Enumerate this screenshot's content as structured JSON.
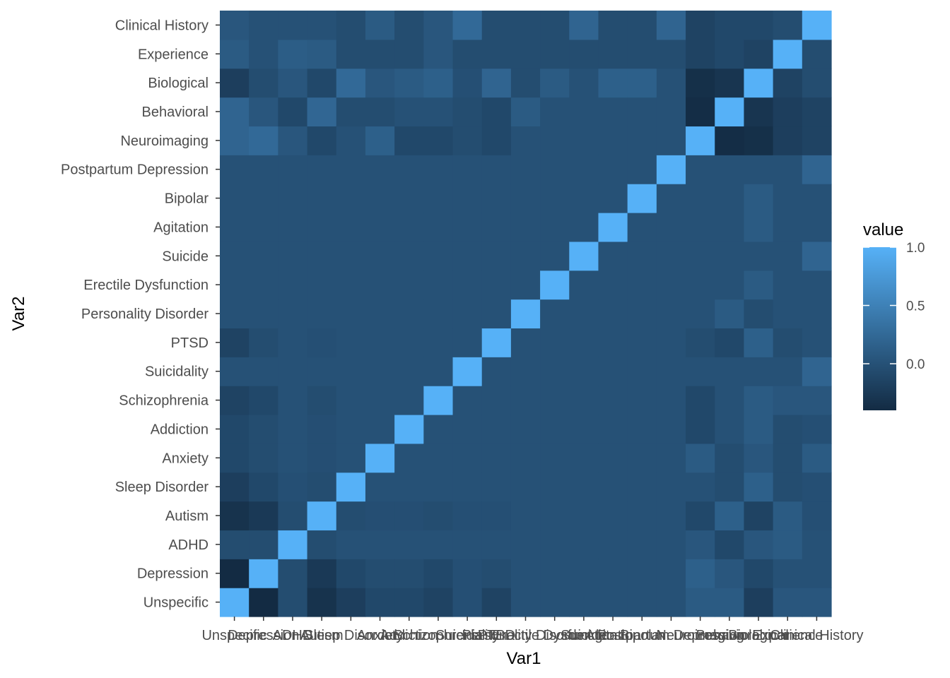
{
  "chart_data": {
    "type": "heatmap",
    "xlabel": "Var1",
    "ylabel": "Var2",
    "categories": [
      "Unspecific",
      "Depression",
      "ADHD",
      "Autism",
      "Sleep Disorder",
      "Anxiety",
      "Addiction",
      "Schizophrenia",
      "Suicidality",
      "PTSD",
      "Personality Disorder",
      "Erectile Dysfunction",
      "Suicide",
      "Agitation",
      "Bipolar",
      "Postpartum Depression",
      "Neuroimaging",
      "Behavioral",
      "Biological",
      "Experience",
      "Clinical History"
    ],
    "matrix": [
      [
        1.0,
        -0.4,
        -0.05,
        -0.32,
        -0.2,
        -0.1,
        -0.1,
        -0.15,
        0.0,
        -0.15,
        0.0,
        0.0,
        0.0,
        0.0,
        0.0,
        0.0,
        0.2,
        0.2,
        -0.2,
        0.1,
        0.05
      ],
      [
        -0.4,
        1.0,
        -0.05,
        -0.25,
        -0.1,
        -0.05,
        -0.05,
        -0.1,
        0.0,
        -0.05,
        0.0,
        0.0,
        0.0,
        0.0,
        0.0,
        0.0,
        0.25,
        0.05,
        -0.05,
        0.0,
        0.0
      ],
      [
        -0.05,
        -0.05,
        1.0,
        -0.05,
        -0.02,
        0.0,
        0.0,
        0.0,
        0.0,
        0.0,
        0.0,
        0.0,
        0.0,
        0.0,
        0.0,
        0.0,
        0.05,
        -0.1,
        0.05,
        0.12,
        0.0
      ],
      [
        -0.32,
        -0.25,
        -0.05,
        1.0,
        -0.05,
        -0.03,
        -0.03,
        -0.05,
        0.0,
        -0.02,
        0.0,
        0.0,
        0.0,
        0.0,
        0.0,
        0.0,
        -0.1,
        0.22,
        -0.1,
        0.1,
        0.0
      ],
      [
        -0.2,
        -0.1,
        0.0,
        -0.05,
        1.0,
        0.0,
        0.0,
        0.0,
        0.0,
        0.0,
        0.0,
        0.0,
        0.0,
        0.0,
        0.0,
        0.0,
        0.0,
        -0.05,
        0.25,
        -0.05,
        -0.05
      ],
      [
        -0.1,
        -0.05,
        0.0,
        -0.03,
        0.0,
        1.0,
        0.0,
        0.0,
        0.0,
        0.0,
        0.0,
        0.0,
        0.0,
        0.0,
        0.0,
        0.0,
        0.15,
        -0.05,
        0.05,
        -0.05,
        0.1
      ],
      [
        -0.1,
        -0.05,
        0.0,
        -0.03,
        0.0,
        0.0,
        1.0,
        0.0,
        0.0,
        0.0,
        0.0,
        0.0,
        0.0,
        0.0,
        0.0,
        0.0,
        -0.1,
        0.0,
        0.1,
        -0.05,
        -0.05
      ],
      [
        -0.15,
        -0.1,
        0.0,
        -0.05,
        0.0,
        0.0,
        0.0,
        1.0,
        0.0,
        0.0,
        0.0,
        0.0,
        0.0,
        0.0,
        0.0,
        0.0,
        -0.1,
        0.0,
        0.15,
        0.05,
        0.05
      ],
      [
        -0.02,
        -0.02,
        0.0,
        -0.02,
        0.0,
        0.0,
        0.0,
        0.0,
        1.0,
        0.0,
        0.0,
        0.0,
        0.0,
        0.0,
        0.0,
        0.0,
        -0.05,
        -0.05,
        -0.02,
        -0.05,
        0.25
      ],
      [
        -0.15,
        -0.05,
        0.0,
        -0.02,
        0.0,
        0.0,
        0.0,
        0.0,
        0.0,
        1.0,
        0.0,
        0.0,
        0.0,
        0.0,
        0.0,
        0.0,
        -0.1,
        -0.1,
        0.2,
        -0.05,
        -0.05
      ],
      [
        0.0,
        0.0,
        0.0,
        0.0,
        0.0,
        0.0,
        0.0,
        0.0,
        0.0,
        0.0,
        1.0,
        0.0,
        0.0,
        0.0,
        0.0,
        0.0,
        0.0,
        0.1,
        -0.05,
        -0.05,
        -0.05
      ],
      [
        0.0,
        0.0,
        0.0,
        0.0,
        0.0,
        0.0,
        0.0,
        0.0,
        0.0,
        0.0,
        0.0,
        1.0,
        0.0,
        0.0,
        0.0,
        0.0,
        0.0,
        0.0,
        0.1,
        -0.05,
        -0.05
      ],
      [
        0.0,
        0.0,
        0.0,
        0.0,
        0.0,
        0.0,
        0.0,
        0.0,
        0.0,
        0.0,
        0.0,
        0.0,
        1.0,
        0.0,
        0.0,
        0.0,
        0.0,
        0.0,
        0.0,
        -0.05,
        0.2
      ],
      [
        0.0,
        0.0,
        0.0,
        0.0,
        0.0,
        0.0,
        0.0,
        0.0,
        0.0,
        0.0,
        0.0,
        0.0,
        0.0,
        1.0,
        0.0,
        0.0,
        0.0,
        0.0,
        0.15,
        -0.05,
        -0.05
      ],
      [
        0.0,
        0.0,
        0.0,
        0.0,
        0.0,
        0.0,
        0.0,
        0.0,
        0.0,
        0.0,
        0.0,
        0.0,
        0.0,
        0.0,
        1.0,
        0.0,
        0.0,
        0.0,
        0.15,
        -0.05,
        -0.05
      ],
      [
        0.0,
        0.0,
        0.0,
        0.0,
        0.0,
        0.0,
        0.0,
        0.0,
        0.0,
        0.0,
        0.0,
        0.0,
        0.0,
        0.0,
        0.0,
        1.0,
        0.0,
        0.0,
        0.0,
        -0.05,
        0.2
      ],
      [
        0.1,
        0.15,
        0.05,
        -0.1,
        0.0,
        0.1,
        -0.1,
        -0.1,
        0.0,
        -0.05,
        0.0,
        0.0,
        0.0,
        0.0,
        0.0,
        0.0,
        1.0,
        -0.38,
        -0.35,
        -0.15,
        -0.15
      ],
      [
        0.1,
        0.05,
        -0.1,
        0.15,
        -0.05,
        -0.05,
        0.0,
        0.0,
        0.0,
        -0.1,
        0.1,
        0.0,
        0.0,
        0.0,
        0.0,
        0.0,
        -0.38,
        1.0,
        -0.3,
        -0.1,
        -0.1
      ],
      [
        -0.2,
        -0.1,
        0.05,
        -0.15,
        0.15,
        0.05,
        0.1,
        0.1,
        0.0,
        0.15,
        -0.05,
        0.1,
        0.0,
        0.1,
        0.1,
        0.0,
        -0.35,
        -0.3,
        1.0,
        -0.15,
        -0.1
      ],
      [
        0.05,
        0.0,
        0.1,
        0.1,
        -0.05,
        -0.05,
        -0.05,
        0.05,
        0.0,
        -0.05,
        0.0,
        0.0,
        0.0,
        0.0,
        0.0,
        0.0,
        -0.2,
        -0.2,
        -0.15,
        1.0,
        -0.05
      ],
      [
        0.05,
        0.0,
        0.0,
        -0.02,
        -0.02,
        0.1,
        -0.02,
        0.05,
        0.2,
        0.0,
        0.0,
        0.0,
        0.2,
        0.0,
        0.0,
        0.2,
        -0.15,
        -0.15,
        -0.05,
        -0.05,
        1.0
      ]
    ],
    "color_scale": {
      "low": "#132B43",
      "high": "#56B1F7",
      "min": -0.4,
      "max": 1.0
    },
    "legend": {
      "title": "value",
      "ticks": [
        1.0,
        0.5,
        0.0
      ],
      "tick_labels": [
        "1.0",
        "0.5",
        "0.0"
      ],
      "position": "right"
    },
    "grid": true,
    "panel_background": "#EBEBEB",
    "grid_color": "#FFFFFF"
  }
}
